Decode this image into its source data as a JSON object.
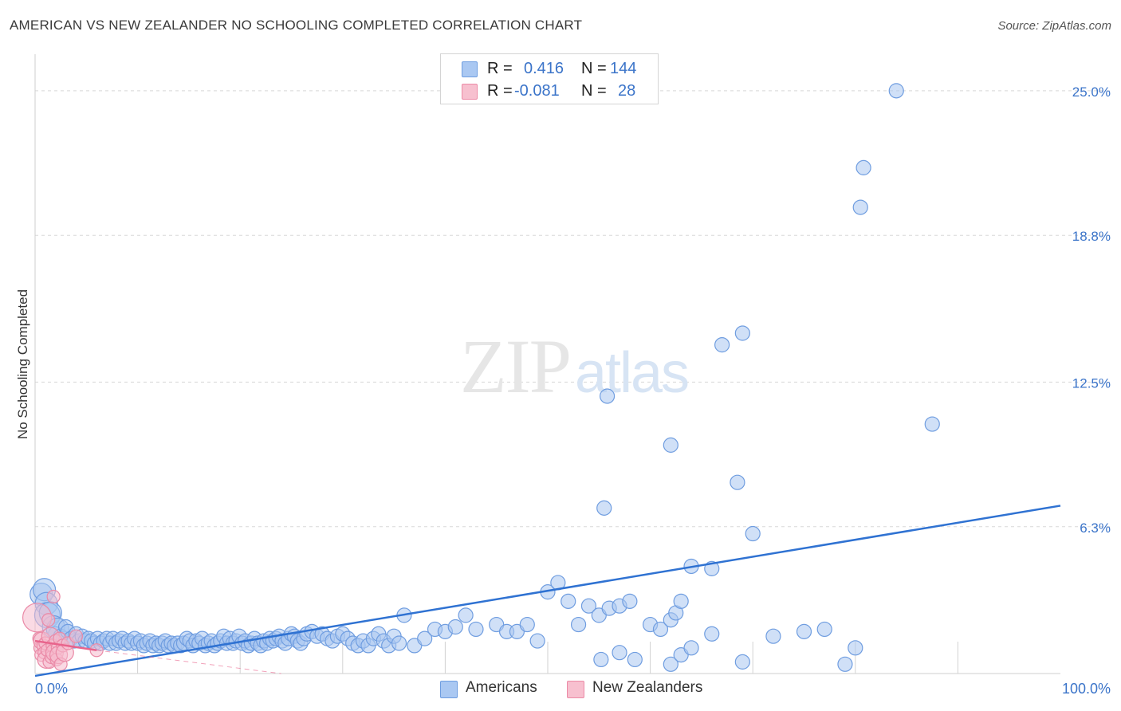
{
  "title": "AMERICAN VS NEW ZEALANDER NO SCHOOLING COMPLETED CORRELATION CHART",
  "source": "Source: ZipAtlas.com",
  "legend_top": {
    "rows": [
      {
        "r_label": "R =",
        "r_value": "0.416",
        "n_label": "N =",
        "n_value": "144",
        "color": "#aac8f2",
        "border": "#6e9de0"
      },
      {
        "r_label": "R =",
        "r_value": "-0.081",
        "n_label": "N =",
        "n_value": "28",
        "color": "#f7c0cf",
        "border": "#ec8aa6"
      }
    ]
  },
  "bottom_legend": {
    "americans": "Americans",
    "new_zealanders": "New Zealanders"
  },
  "colors": {
    "blue_fill": "#a9c6f1",
    "blue_stroke": "#6f9de0",
    "blue_line": "#2f72d2",
    "pink_fill": "#f6bccd",
    "pink_stroke": "#ea8aa7",
    "pink_line": "#e8648c",
    "grid": "#d8d8d8",
    "tick_label": "#3b74c9"
  },
  "chart_data": {
    "type": "scatter",
    "title": "AMERICAN VS NEW ZEALANDER NO SCHOOLING COMPLETED CORRELATION CHART",
    "xlabel": "",
    "ylabel": "No Schooling Completed",
    "xlim": [
      0,
      100
    ],
    "ylim": [
      0,
      26.5
    ],
    "x_tick_labels": [
      "0.0%",
      "100.0%"
    ],
    "y_ticks": [
      6.3,
      12.5,
      18.8,
      25.0
    ],
    "y_tick_labels": [
      "6.3%",
      "12.5%",
      "18.8%",
      "25.0%"
    ],
    "watermark": "ZIPatlas",
    "series": [
      {
        "name": "Americans",
        "trend": {
          "x": [
            0,
            100
          ],
          "y": [
            -0.1,
            7.2
          ]
        },
        "points": [
          [
            0.6,
            3.4
          ],
          [
            0.9,
            3.6
          ],
          [
            1.1,
            3.0
          ],
          [
            1.2,
            2.5
          ],
          [
            1.5,
            2.6
          ],
          [
            1.8,
            2.0
          ],
          [
            2.0,
            1.7
          ],
          [
            2.2,
            1.9
          ],
          [
            2.5,
            1.6
          ],
          [
            2.8,
            1.5
          ],
          [
            3.0,
            2.0
          ],
          [
            3.2,
            1.8
          ],
          [
            3.5,
            1.5
          ],
          [
            3.8,
            1.4
          ],
          [
            4.0,
            1.7
          ],
          [
            4.3,
            1.4
          ],
          [
            4.6,
            1.6
          ],
          [
            4.9,
            1.4
          ],
          [
            5.2,
            1.5
          ],
          [
            5.5,
            1.4
          ],
          [
            5.8,
            1.3
          ],
          [
            6.1,
            1.5
          ],
          [
            6.4,
            1.3
          ],
          [
            6.7,
            1.4
          ],
          [
            7.0,
            1.5
          ],
          [
            7.3,
            1.3
          ],
          [
            7.6,
            1.5
          ],
          [
            7.9,
            1.3
          ],
          [
            8.2,
            1.4
          ],
          [
            8.5,
            1.5
          ],
          [
            8.8,
            1.3
          ],
          [
            9.1,
            1.4
          ],
          [
            9.4,
            1.3
          ],
          [
            9.7,
            1.5
          ],
          [
            10.0,
            1.3
          ],
          [
            10.3,
            1.4
          ],
          [
            10.6,
            1.2
          ],
          [
            10.9,
            1.3
          ],
          [
            11.2,
            1.4
          ],
          [
            11.5,
            1.2
          ],
          [
            11.8,
            1.3
          ],
          [
            12.1,
            1.2
          ],
          [
            12.4,
            1.3
          ],
          [
            12.7,
            1.4
          ],
          [
            13.0,
            1.2
          ],
          [
            13.3,
            1.3
          ],
          [
            13.6,
            1.2
          ],
          [
            13.9,
            1.3
          ],
          [
            14.2,
            1.2
          ],
          [
            14.5,
            1.3
          ],
          [
            14.8,
            1.5
          ],
          [
            15.1,
            1.4
          ],
          [
            15.4,
            1.2
          ],
          [
            15.7,
            1.4
          ],
          [
            16.0,
            1.3
          ],
          [
            16.3,
            1.5
          ],
          [
            16.6,
            1.2
          ],
          [
            16.9,
            1.3
          ],
          [
            17.2,
            1.4
          ],
          [
            17.5,
            1.2
          ],
          [
            17.8,
            1.3
          ],
          [
            18.1,
            1.4
          ],
          [
            18.4,
            1.6
          ],
          [
            18.7,
            1.3
          ],
          [
            19.0,
            1.5
          ],
          [
            19.3,
            1.3
          ],
          [
            19.6,
            1.4
          ],
          [
            19.9,
            1.6
          ],
          [
            20.2,
            1.3
          ],
          [
            20.5,
            1.4
          ],
          [
            20.8,
            1.2
          ],
          [
            21.1,
            1.3
          ],
          [
            21.4,
            1.5
          ],
          [
            21.7,
            1.3
          ],
          [
            22.0,
            1.2
          ],
          [
            22.3,
            1.4
          ],
          [
            22.6,
            1.3
          ],
          [
            22.9,
            1.5
          ],
          [
            23.2,
            1.4
          ],
          [
            23.5,
            1.5
          ],
          [
            23.8,
            1.6
          ],
          [
            24.1,
            1.4
          ],
          [
            24.4,
            1.3
          ],
          [
            24.7,
            1.5
          ],
          [
            25.0,
            1.7
          ],
          [
            25.3,
            1.6
          ],
          [
            25.6,
            1.4
          ],
          [
            25.9,
            1.3
          ],
          [
            26.2,
            1.5
          ],
          [
            26.5,
            1.7
          ],
          [
            27.0,
            1.8
          ],
          [
            27.5,
            1.6
          ],
          [
            28.0,
            1.7
          ],
          [
            28.5,
            1.5
          ],
          [
            29.0,
            1.4
          ],
          [
            29.5,
            1.6
          ],
          [
            30.0,
            1.7
          ],
          [
            30.5,
            1.5
          ],
          [
            31.0,
            1.3
          ],
          [
            31.5,
            1.2
          ],
          [
            32.0,
            1.4
          ],
          [
            32.5,
            1.2
          ],
          [
            33.0,
            1.5
          ],
          [
            33.5,
            1.7
          ],
          [
            34.0,
            1.4
          ],
          [
            34.5,
            1.2
          ],
          [
            35.0,
            1.6
          ],
          [
            35.5,
            1.3
          ],
          [
            36.0,
            2.5
          ],
          [
            37.0,
            1.2
          ],
          [
            38.0,
            1.5
          ],
          [
            39.0,
            1.9
          ],
          [
            40.0,
            1.8
          ],
          [
            41.0,
            2.0
          ],
          [
            42.0,
            2.5
          ],
          [
            43.0,
            1.9
          ],
          [
            45.0,
            2.1
          ],
          [
            46.0,
            1.8
          ],
          [
            47.0,
            1.8
          ],
          [
            48.0,
            2.1
          ],
          [
            49.0,
            1.4
          ],
          [
            50.0,
            3.5
          ],
          [
            51.0,
            3.9
          ],
          [
            52.0,
            3.1
          ],
          [
            53.0,
            2.1
          ],
          [
            54.0,
            2.9
          ],
          [
            55.0,
            2.5
          ],
          [
            56.0,
            2.8
          ],
          [
            57.0,
            2.9
          ],
          [
            58.0,
            3.1
          ],
          [
            55.5,
            7.1
          ],
          [
            55.8,
            11.9
          ],
          [
            60.0,
            2.1
          ],
          [
            61.0,
            1.9
          ],
          [
            62.0,
            2.3
          ],
          [
            62.5,
            2.6
          ],
          [
            62.0,
            9.8
          ],
          [
            63.0,
            3.1
          ],
          [
            64.0,
            4.6
          ],
          [
            66.0,
            4.5
          ],
          [
            67.0,
            14.1
          ],
          [
            69.0,
            14.6
          ],
          [
            68.5,
            8.2
          ],
          [
            70.0,
            6.0
          ],
          [
            80.5,
            20.0
          ],
          [
            80.8,
            21.7
          ],
          [
            84.0,
            25.0
          ],
          [
            87.5,
            10.7
          ]
        ],
        "low_points": [
          [
            55.2,
            0.6
          ],
          [
            57.0,
            0.9
          ],
          [
            58.5,
            0.6
          ],
          [
            62.0,
            0.4
          ],
          [
            63.0,
            0.8
          ],
          [
            64.0,
            1.1
          ],
          [
            66.0,
            1.7
          ],
          [
            69.0,
            0.5
          ],
          [
            72.0,
            1.6
          ],
          [
            75.0,
            1.8
          ],
          [
            77.0,
            1.9
          ],
          [
            79.0,
            0.4
          ],
          [
            80.0,
            1.1
          ]
        ]
      },
      {
        "name": "New Zealanders",
        "trend": {
          "x": [
            0,
            6
          ],
          "y": [
            1.4,
            1.0
          ]
        },
        "points": [
          [
            0.2,
            2.4
          ],
          [
            0.4,
            1.5
          ],
          [
            0.5,
            1.1
          ],
          [
            0.6,
            0.8
          ],
          [
            0.7,
            1.4
          ],
          [
            0.8,
            1.2
          ],
          [
            0.9,
            0.9
          ],
          [
            1.0,
            1.3
          ],
          [
            1.1,
            0.6
          ],
          [
            1.2,
            1.0
          ],
          [
            1.3,
            2.3
          ],
          [
            1.4,
            0.5
          ],
          [
            1.5,
            1.6
          ],
          [
            1.6,
            0.7
          ],
          [
            1.7,
            1.2
          ],
          [
            1.8,
            3.3
          ],
          [
            1.9,
            0.9
          ],
          [
            2.0,
            1.4
          ],
          [
            2.1,
            0.6
          ],
          [
            2.2,
            1.1
          ],
          [
            2.3,
            0.8
          ],
          [
            2.4,
            1.5
          ],
          [
            2.5,
            0.4
          ],
          [
            2.7,
            1.2
          ],
          [
            2.9,
            0.9
          ],
          [
            3.2,
            1.3
          ],
          [
            4.0,
            1.6
          ],
          [
            6.0,
            1.0
          ]
        ]
      }
    ]
  }
}
